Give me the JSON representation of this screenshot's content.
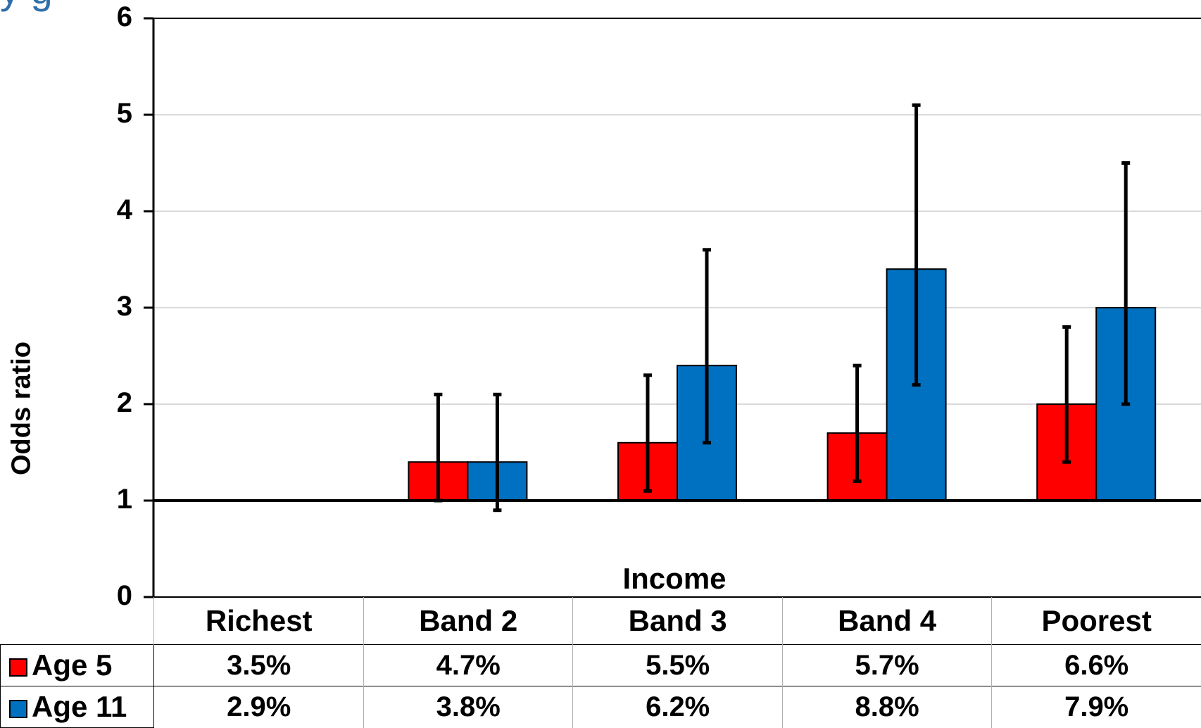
{
  "chart_data": {
    "type": "bar",
    "title": "",
    "title_fragment": "y  g",
    "xlabel": "Income",
    "ylabel": "Odds ratio",
    "ylim": [
      0,
      6
    ],
    "yticks": [
      "0",
      "1",
      "2",
      "3",
      "4",
      "5",
      "6"
    ],
    "reference_line": 1,
    "grid": true,
    "categories": [
      "Richest",
      "Band 2",
      "Band 3",
      "Band 4",
      "Poorest"
    ],
    "series": [
      {
        "name": "Age 5",
        "color": "#ff0000",
        "values": [
          null,
          1.4,
          1.6,
          1.7,
          2.0
        ],
        "error_low": [
          null,
          1.0,
          1.1,
          1.2,
          1.4
        ],
        "error_high": [
          null,
          2.1,
          2.3,
          2.4,
          2.8
        ],
        "table_values": [
          "3.5%",
          "4.7%",
          "5.5%",
          "5.7%",
          "6.6%"
        ]
      },
      {
        "name": "Age 11",
        "color": "#0070c0",
        "values": [
          null,
          1.4,
          2.4,
          3.4,
          3.0
        ],
        "error_low": [
          null,
          0.9,
          1.6,
          2.2,
          2.0
        ],
        "error_high": [
          null,
          2.1,
          3.6,
          5.1,
          4.5
        ],
        "table_values": [
          "2.9%",
          "3.8%",
          "6.2%",
          "8.8%",
          "7.9%"
        ]
      }
    ],
    "data_table": true
  }
}
